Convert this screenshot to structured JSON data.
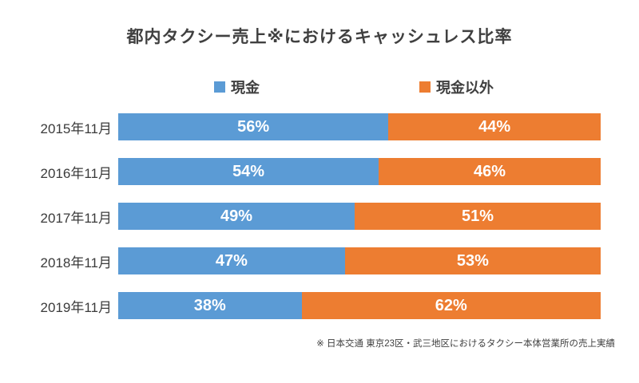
{
  "chart_data": {
    "type": "bar",
    "orientation": "horizontal-stacked",
    "title": "都内タクシー売上※におけるキャッシュレス比率",
    "categories": [
      "2015年11月",
      "2016年11月",
      "2017年11月",
      "2018年11月",
      "2019年11月"
    ],
    "series": [
      {
        "name": "現金",
        "color": "#5B9BD5",
        "values": [
          56,
          54,
          49,
          47,
          38
        ]
      },
      {
        "name": "現金以外",
        "color": "#ED7D31",
        "values": [
          44,
          46,
          51,
          53,
          62
        ]
      }
    ],
    "value_suffix": "%",
    "xlim": [
      0,
      100
    ],
    "grid": false,
    "legend_position": "top",
    "footnote": "※ 日本交通 東京23区・武三地区におけるタクシー本体営業所の売上実績"
  }
}
